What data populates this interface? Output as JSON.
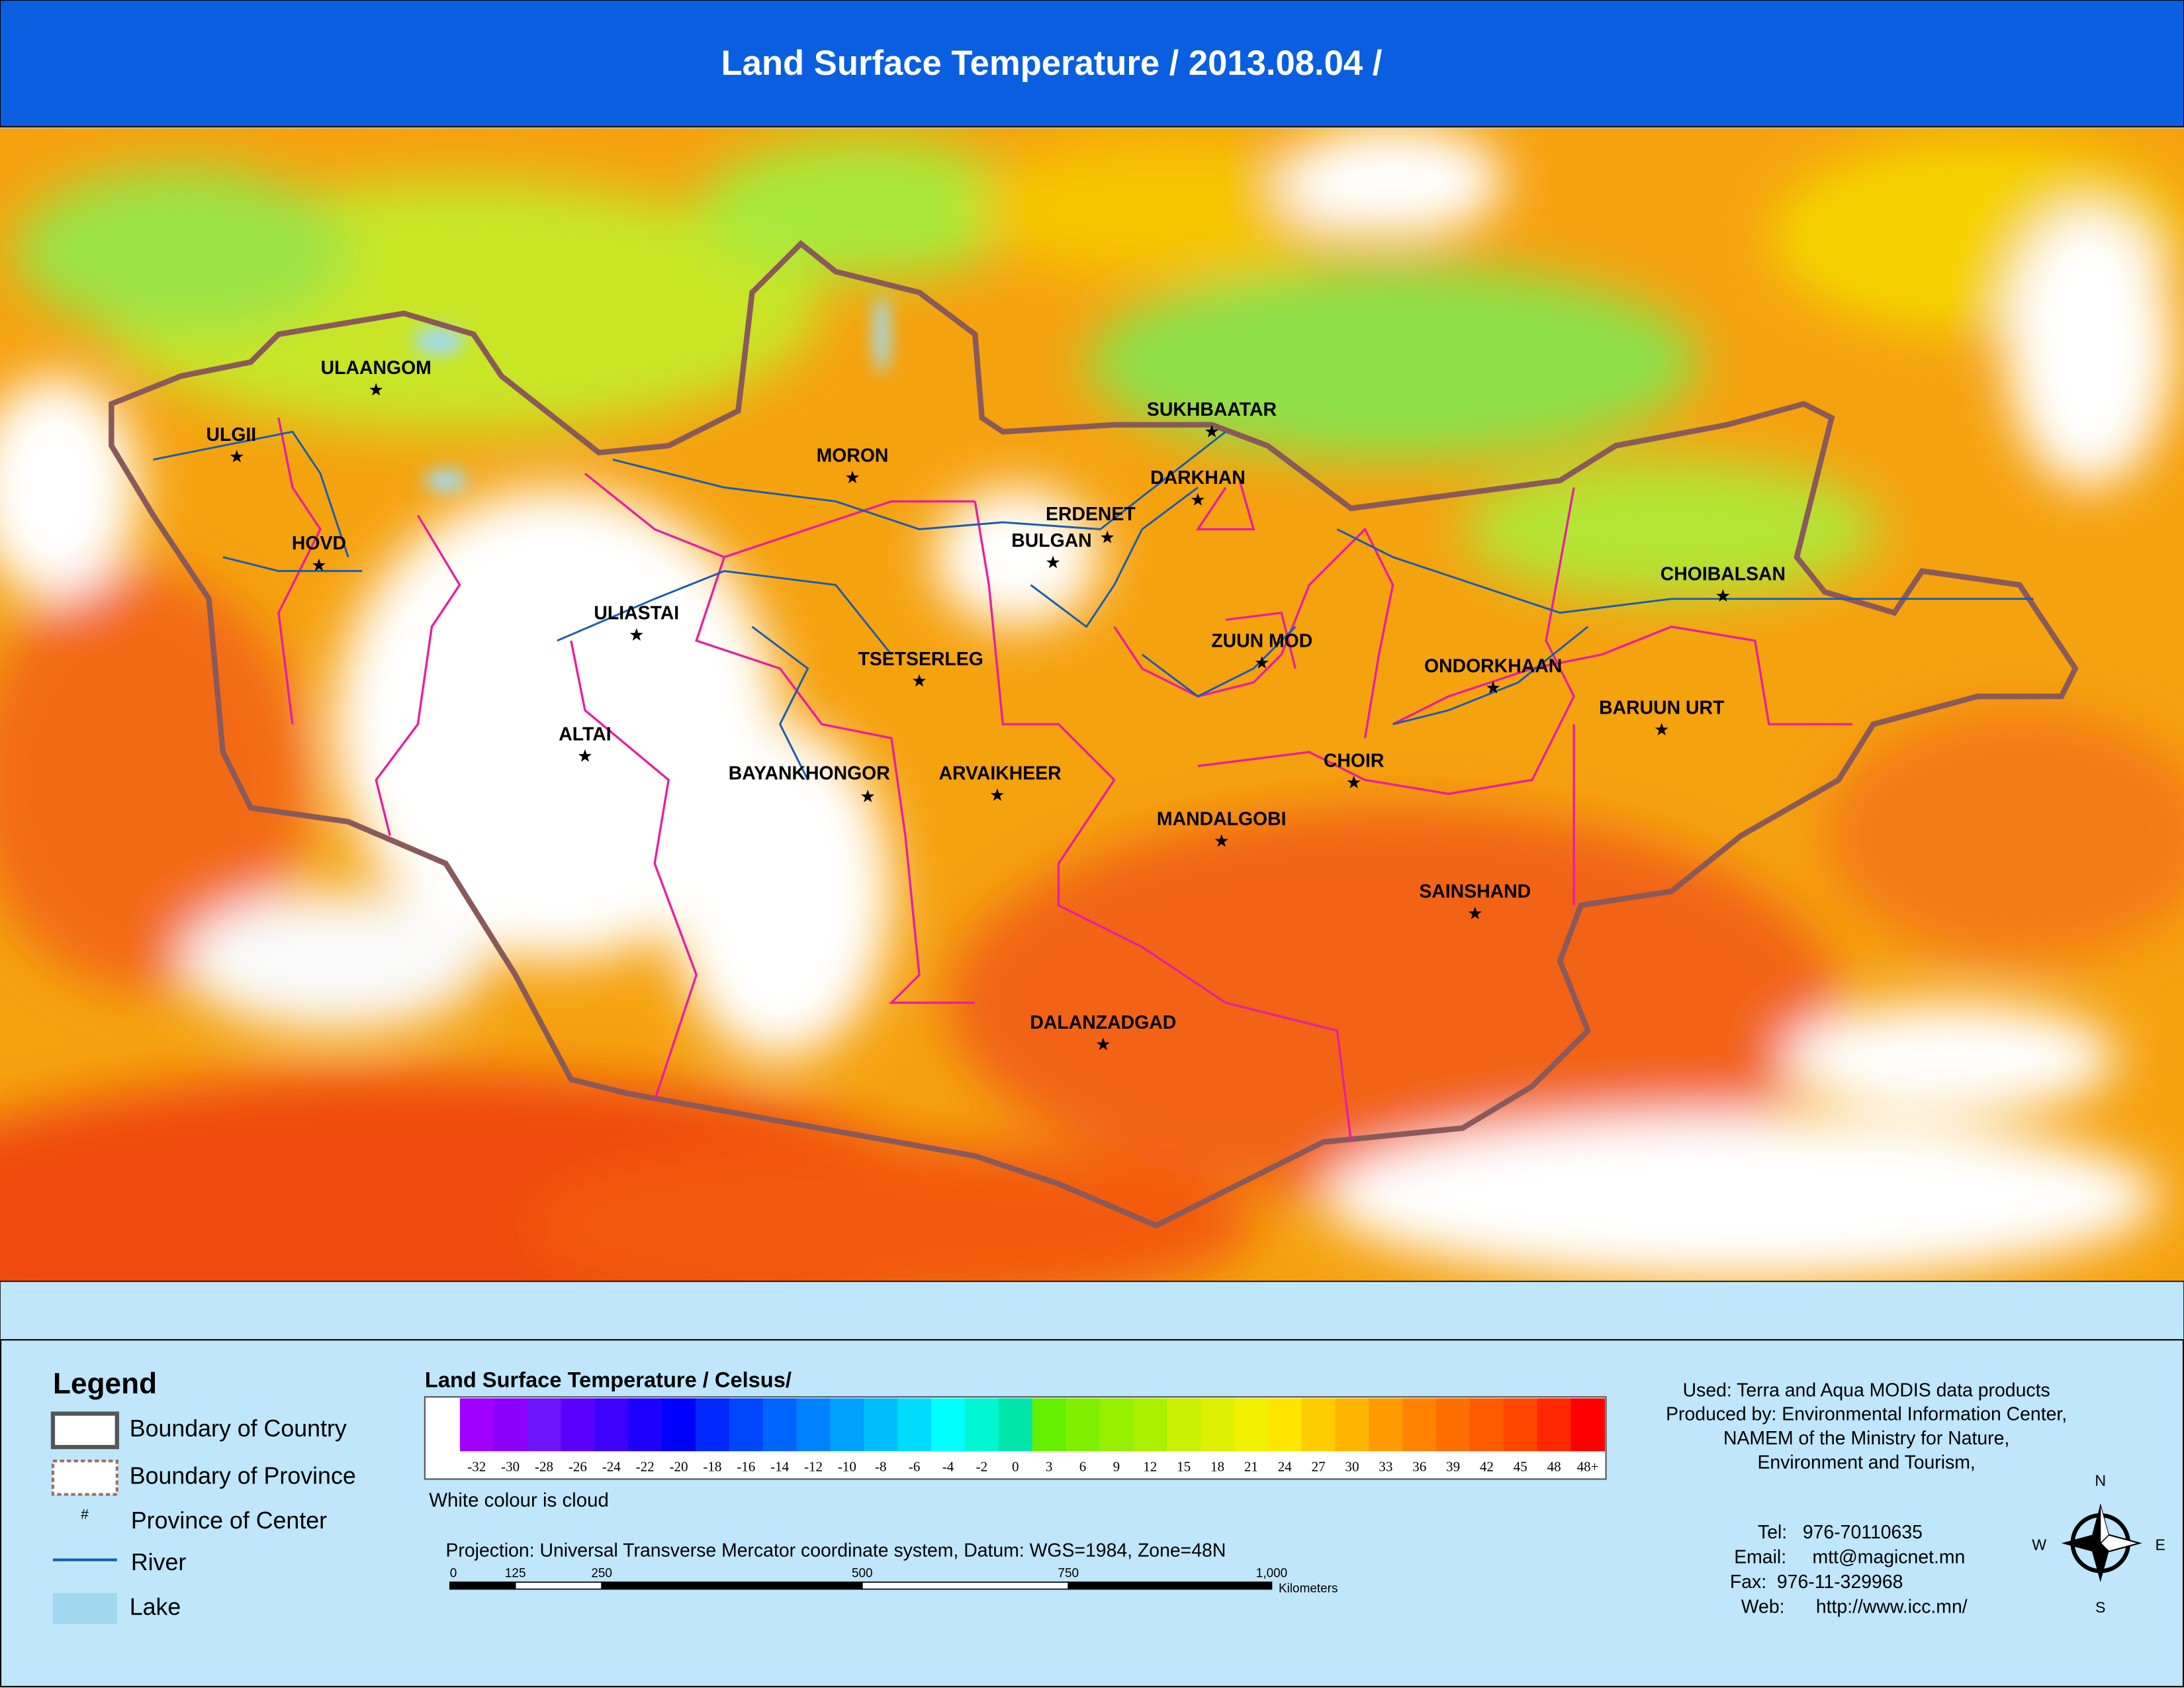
{
  "header": {
    "title": "Land Surface Temperature / 2013.08.04 /"
  },
  "map": {
    "places": [
      "ULAANGOM",
      "ULGII",
      "HOVD",
      "MORON",
      "SUKHBAATAR",
      "DARKHAN",
      "ERDENET",
      "BULGAN",
      "CHOIBALSAN",
      "ULIASTAI",
      "ZUUN MOD",
      "TSETSERLEG",
      "ONDORKHAAN",
      "BARUUN URT",
      "ALTAI",
      "CHOIR",
      "BAYANKHONGOR",
      "ARVAIKHEER",
      "MANDALGOBI",
      "SAINSHAND",
      "DALANZADGAD"
    ]
  },
  "legend": {
    "title": "Legend",
    "items": [
      "Boundary of Country",
      "Boundary of Province",
      "Province of Center",
      "River",
      "Lake"
    ],
    "center_symbol": "#"
  },
  "colorbar": {
    "title": "Land Surface Temperature / Celsus/",
    "labels": [
      -32,
      -30,
      -28,
      -26,
      -24,
      -22,
      -20,
      -18,
      -16,
      -14,
      -12,
      -10,
      -8,
      -6,
      -4,
      -2,
      0,
      3,
      6,
      9,
      12,
      15,
      18,
      21,
      24,
      27,
      30,
      33,
      36,
      39,
      42,
      45,
      48,
      "48+"
    ],
    "colors": [
      "#ffffff",
      "#a000ff",
      "#8c00ff",
      "#6e14ff",
      "#5a00ff",
      "#3c00ff",
      "#1e00ff",
      "#0000ff",
      "#0028ff",
      "#0046ff",
      "#0064ff",
      "#0082ff",
      "#00a0ff",
      "#00beff",
      "#00dcff",
      "#00ffff",
      "#00f5d2",
      "#00e6aa",
      "#64f000",
      "#80f000",
      "#96f000",
      "#aaf000",
      "#c8f000",
      "#dcf000",
      "#f0f000",
      "#ffe600",
      "#ffcc00",
      "#ffb400",
      "#ff9b00",
      "#ff8200",
      "#ff6e00",
      "#ff5a00",
      "#ff4600",
      "#ff2800",
      "#ff0000"
    ],
    "note": "White colour is cloud"
  },
  "projection": "Projection: Universal Transverse Mercator coordinate system, Datum: WGS=1984, Zone=48N",
  "scale_bar": {
    "labels": [
      0,
      125,
      250,
      500,
      750,
      "1,000"
    ],
    "unit": "Kilometers"
  },
  "credits": [
    "Used: Terra and Aqua MODIS data products",
    "Produced by: Environmental Information Center,",
    "NAMEM of the Ministry for Nature,",
    "Environment and Tourism,"
  ],
  "contacts": [
    "Tel:   976-70110635",
    "Email:     mtt@magicnet.mn",
    "Fax:  976-11-329968",
    "Web:      http://www.icc.mn/"
  ],
  "compass": {
    "north": "N",
    "east": "E",
    "south": "S",
    "west": "W"
  }
}
